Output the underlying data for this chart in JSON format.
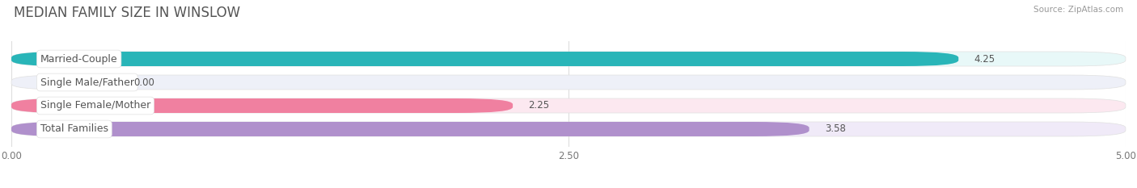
{
  "title": "MEDIAN FAMILY SIZE IN WINSLOW",
  "source": "Source: ZipAtlas.com",
  "categories": [
    "Married-Couple",
    "Single Male/Father",
    "Single Female/Mother",
    "Total Families"
  ],
  "values": [
    4.25,
    0.0,
    2.25,
    3.58
  ],
  "bar_colors": [
    "#29b5b8",
    "#a0b8e8",
    "#f080a0",
    "#b090cc"
  ],
  "bar_bg_colors": [
    "#e8f8f8",
    "#eef0f8",
    "#fce8f0",
    "#f0eaf8"
  ],
  "xlim": [
    0,
    5.0
  ],
  "xticks": [
    0.0,
    2.5,
    5.0
  ],
  "xtick_labels": [
    "0.00",
    "2.50",
    "5.00"
  ],
  "value_fontsize": 8.5,
  "label_fontsize": 9,
  "title_fontsize": 12,
  "bar_height": 0.62,
  "background_color": "#ffffff",
  "label_box_color": "#ffffff",
  "label_text_color": "#555555",
  "value_text_color": "#555555",
  "grid_color": "#dddddd",
  "title_color": "#555555",
  "source_color": "#999999"
}
